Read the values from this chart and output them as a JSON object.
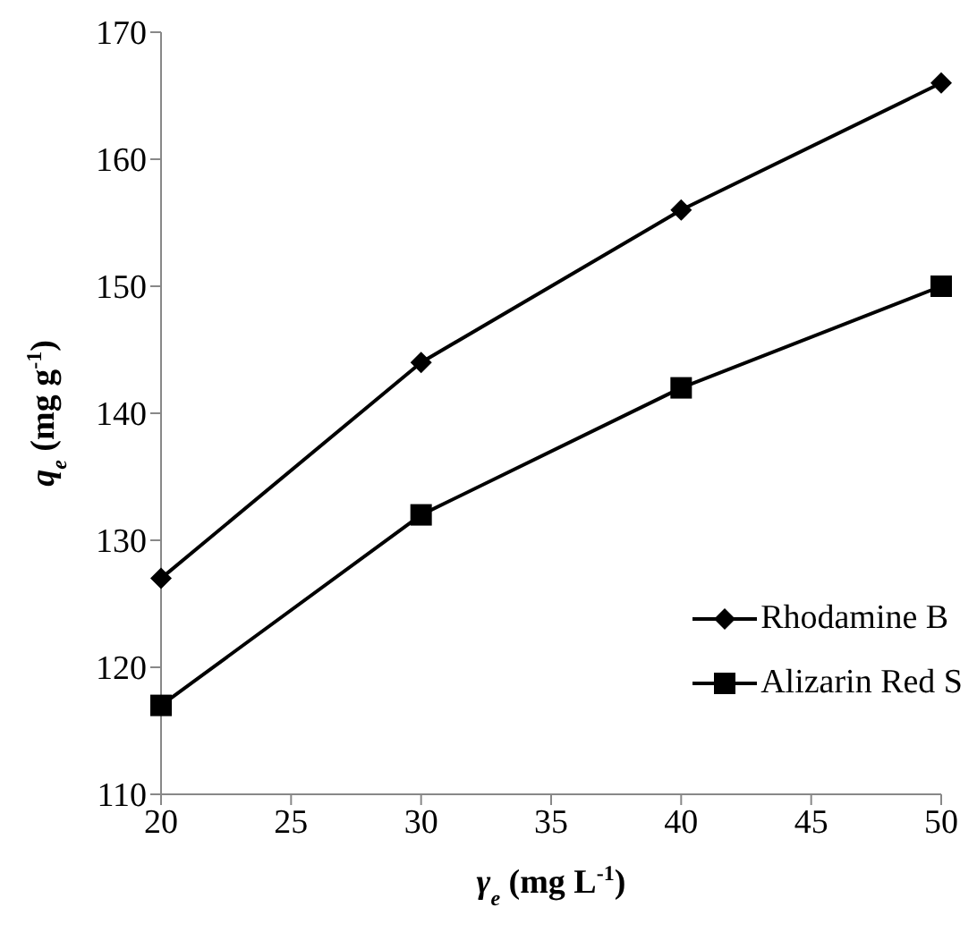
{
  "chart_data": {
    "type": "line",
    "xlabel": "γ$_{e}$ (mg L$^{-1}$)",
    "ylabel": "q$_{e}$ (mg g$^{-1}$)",
    "x": [
      20,
      30,
      40,
      50
    ],
    "series": [
      {
        "name": "Rhodamine B",
        "color": "#000000",
        "marker": "diamond",
        "values": [
          127,
          144,
          156,
          166
        ]
      },
      {
        "name": "Alizarin Red S",
        "color": "#000000",
        "marker": "square",
        "values": [
          117,
          132,
          142,
          150
        ]
      }
    ],
    "xlim": [
      20,
      50
    ],
    "xticks": [
      20,
      25,
      30,
      35,
      40,
      45,
      50
    ],
    "ylim": [
      110,
      170
    ],
    "yticks": [
      110,
      120,
      130,
      140,
      150,
      160,
      170
    ],
    "grid": false,
    "legend": "right",
    "line_style": "solid"
  }
}
